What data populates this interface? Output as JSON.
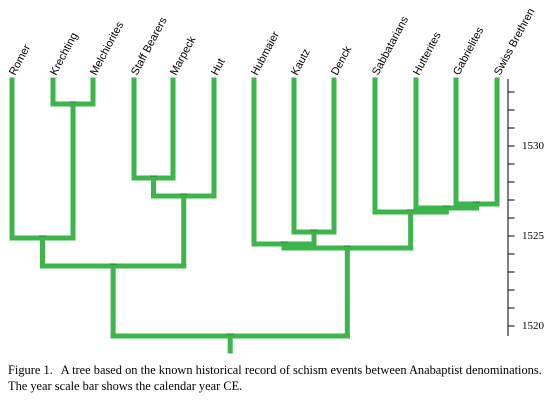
{
  "leaves": [
    "Romer",
    "Krechting",
    "Melchiorites",
    "Staff Bearers",
    "Marpeck",
    "Hut",
    "Hubmaier",
    "Kautz",
    "Denck",
    "Sabbatarians",
    "Hutterites",
    "Gabrielites",
    "Swiss Brethren"
  ],
  "scale": {
    "labels": [
      "1530",
      "1525",
      "1520"
    ]
  },
  "colors": {
    "branch": "#3cb54a",
    "node_line": "#2a6e32",
    "text": "#000000"
  },
  "caption": {
    "label": "Figure 1.",
    "text": "A tree based on the known historical record of schism events between Anabaptist denominations. The year scale bar shows the calendar year CE."
  }
}
